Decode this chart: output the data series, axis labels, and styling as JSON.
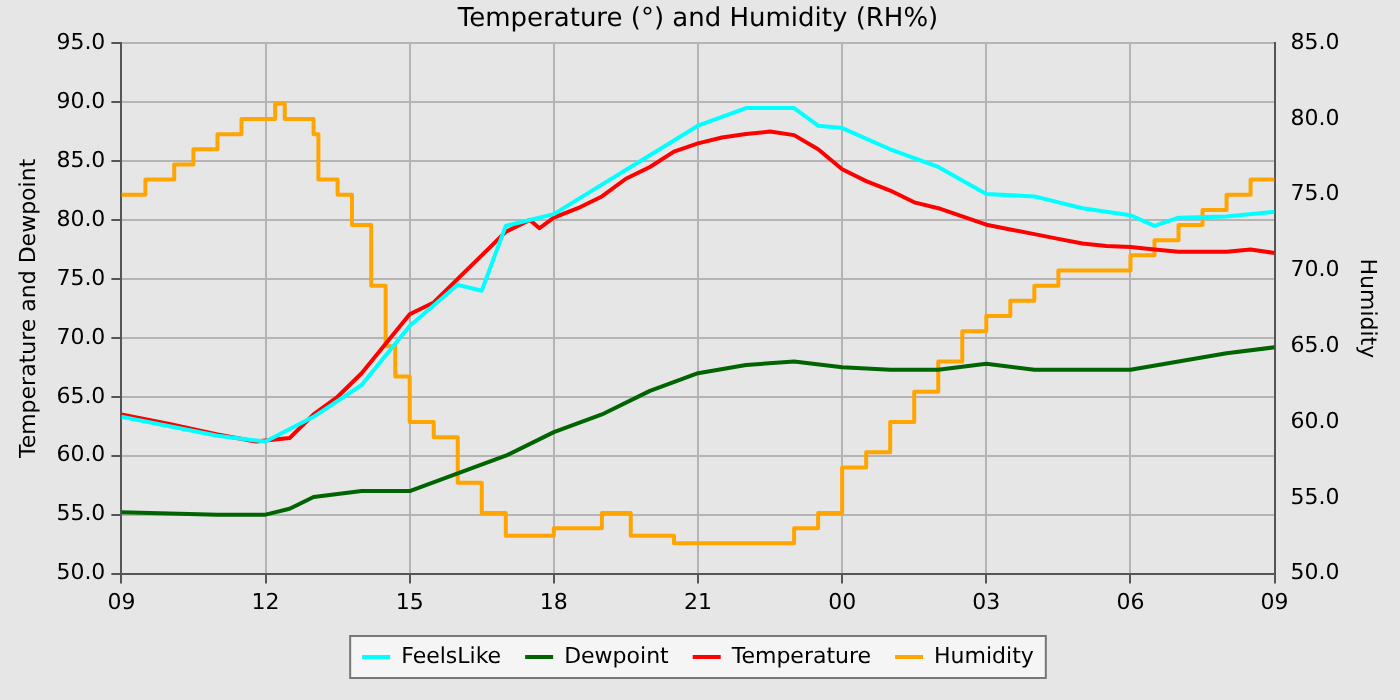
{
  "chart_data": {
    "type": "line",
    "title": "Temperature (°) and Humidity (RH%)",
    "ylabel": "Temperature and Dewpoint",
    "y2label": "Humidity",
    "xlim": [
      9,
      33
    ],
    "xticks": [
      {
        "value": 9,
        "label": "09"
      },
      {
        "value": 12,
        "label": "12"
      },
      {
        "value": 15,
        "label": "15"
      },
      {
        "value": 18,
        "label": "18"
      },
      {
        "value": 21,
        "label": "21"
      },
      {
        "value": 24,
        "label": "00"
      },
      {
        "value": 27,
        "label": "03"
      },
      {
        "value": 30,
        "label": "06"
      },
      {
        "value": 33,
        "label": "09"
      }
    ],
    "ylim": [
      50,
      95
    ],
    "yticks": [
      {
        "value": 50,
        "label": "50.0"
      },
      {
        "value": 55,
        "label": "55.0"
      },
      {
        "value": 60,
        "label": "60.0"
      },
      {
        "value": 65,
        "label": "65.0"
      },
      {
        "value": 70,
        "label": "70.0"
      },
      {
        "value": 75,
        "label": "75.0"
      },
      {
        "value": 80,
        "label": "80.0"
      },
      {
        "value": 85,
        "label": "85.0"
      },
      {
        "value": 90,
        "label": "90.0"
      },
      {
        "value": 95,
        "label": "95.0"
      }
    ],
    "y2lim": [
      50,
      85
    ],
    "y2ticks": [
      {
        "value": 50,
        "label": "50.0"
      },
      {
        "value": 55,
        "label": "55.0"
      },
      {
        "value": 60,
        "label": "60.0"
      },
      {
        "value": 65,
        "label": "65.0"
      },
      {
        "value": 70,
        "label": "70.0"
      },
      {
        "value": 75,
        "label": "75.0"
      },
      {
        "value": 80,
        "label": "80.0"
      },
      {
        "value": 85,
        "label": "85.0"
      }
    ],
    "grid": true,
    "legend": "bottom",
    "line_style": "solid",
    "marker": "none",
    "series": [
      {
        "name": "FeelsLike",
        "color": "#00ffff",
        "x": [
          9,
          10,
          11,
          12,
          13,
          14,
          15,
          16,
          16.5,
          17,
          18,
          19,
          20,
          21,
          22,
          23,
          23.5,
          24,
          25,
          26,
          27,
          28,
          29,
          30,
          30.5,
          31,
          32,
          33
        ],
        "values": [
          63.3,
          62.5,
          61.7,
          61.2,
          63.3,
          66,
          71,
          74.5,
          74,
          79.5,
          80.5,
          83,
          85.5,
          88,
          89.5,
          89.5,
          88,
          87.8,
          86,
          84.5,
          82.2,
          82,
          81,
          80.4,
          79.5,
          80.2,
          80.3,
          80.7
        ]
      },
      {
        "name": "Dewpoint",
        "color": "#006400",
        "x": [
          9,
          10,
          11,
          12,
          12.5,
          13,
          14,
          15,
          16,
          17,
          18,
          19,
          20,
          21,
          22,
          23,
          24,
          25,
          26,
          27,
          28,
          29,
          30,
          31,
          32,
          33
        ],
        "values": [
          55.2,
          55.1,
          55,
          55,
          55.5,
          56.5,
          57,
          57,
          58.5,
          60,
          62,
          63.5,
          65.5,
          67,
          67.7,
          68,
          67.5,
          67.3,
          67.3,
          67.8,
          67.3,
          67.3,
          67.3,
          68,
          68.7,
          69.2
        ]
      },
      {
        "name": "Temperature",
        "color": "#ff0000",
        "x": [
          9,
          10,
          11,
          11.8,
          12.5,
          13,
          13.5,
          14,
          14.5,
          15,
          15.5,
          16,
          16.5,
          17,
          17.5,
          17.7,
          18,
          18.5,
          19,
          19.5,
          20,
          20.5,
          21,
          21.5,
          22,
          22.5,
          23,
          23.5,
          24,
          24.5,
          25,
          25.5,
          26,
          26.5,
          27,
          27.5,
          28,
          28.5,
          29,
          29.5,
          30,
          30.5,
          31,
          31.5,
          32,
          32.5,
          33
        ],
        "values": [
          63.5,
          62.7,
          61.8,
          61.2,
          61.5,
          63.5,
          65,
          67,
          69.5,
          72,
          73,
          75,
          77,
          79,
          80,
          79.3,
          80.2,
          81,
          82,
          83.5,
          84.5,
          85.8,
          86.5,
          87,
          87.3,
          87.5,
          87.2,
          86,
          84.3,
          83.3,
          82.5,
          81.5,
          81,
          80.3,
          79.6,
          79.2,
          78.8,
          78.4,
          78,
          77.8,
          77.7,
          77.5,
          77.3,
          77.3,
          77.3,
          77.5,
          77.2
        ]
      },
      {
        "name": "Humidity",
        "type": "step",
        "axis": "y2",
        "color": "#ffa500",
        "x": [
          9,
          9.5,
          10.1,
          10.5,
          11,
          11.5,
          12.2,
          12.4,
          13,
          13.1,
          13.5,
          13.8,
          14.2,
          14.5,
          14.7,
          15,
          15.5,
          16,
          16.5,
          17,
          18,
          19,
          19.6,
          20.5,
          21,
          22,
          23,
          23.5,
          24,
          24.5,
          25,
          25.5,
          26,
          26.5,
          27,
          27.5,
          28,
          28.5,
          29,
          29.5,
          30,
          30.5,
          31,
          31.5,
          32,
          32.5,
          33
        ],
        "values": [
          75,
          76,
          77,
          78,
          79,
          80,
          81,
          80,
          79,
          76,
          75,
          73,
          69,
          65,
          63,
          60,
          59,
          56,
          54,
          52.5,
          53,
          54,
          52.5,
          52,
          52,
          52,
          53,
          54,
          57,
          58,
          60,
          62,
          64,
          66,
          67,
          68,
          69,
          70,
          70,
          70,
          71,
          72,
          73,
          74,
          75,
          76,
          76
        ]
      }
    ]
  }
}
